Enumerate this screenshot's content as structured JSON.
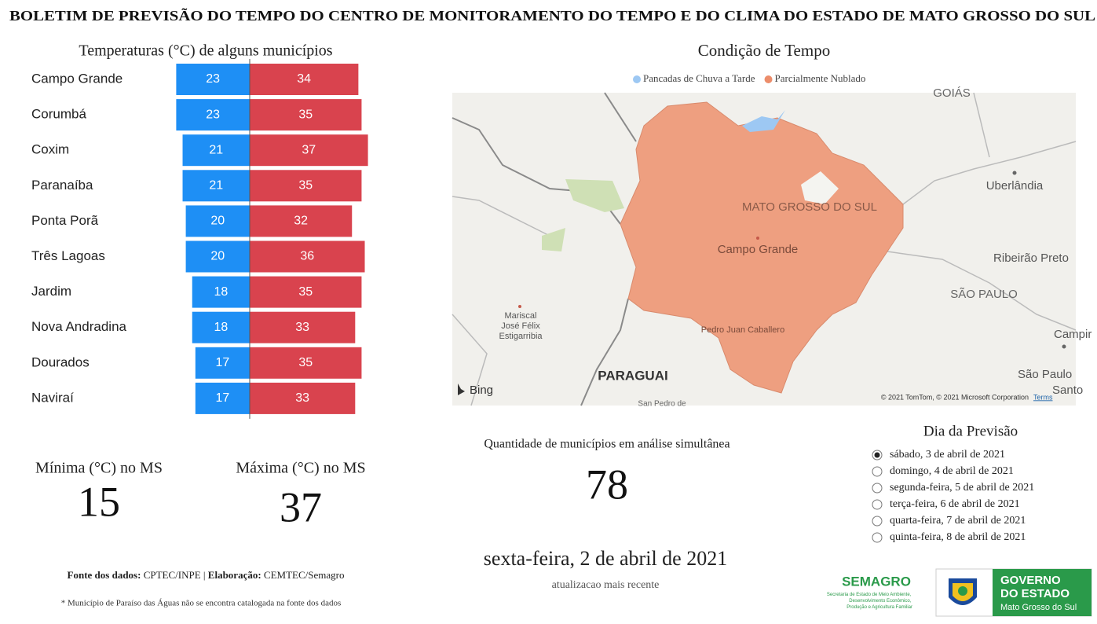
{
  "header": {
    "title": "BOLETIM DE PREVISÃO DO TEMPO DO CENTRO DE MONITORAMENTO DO TEMPO E DO CLIMA DO ESTADO DE MATO GROSSO DO SUL"
  },
  "chart_data": {
    "type": "diverging-bar",
    "title": "Temperaturas (°C) de alguns municípios",
    "categories": [
      "Campo Grande",
      "Corumbá",
      "Coxim",
      "Paranaíba",
      "Ponta Porã",
      "Três Lagoas",
      "Jardim",
      "Nova Andradina",
      "Dourados",
      "Naviraí"
    ],
    "series": [
      {
        "color": "#1e8ff5",
        "values": [
          23,
          23,
          21,
          21,
          20,
          20,
          18,
          18,
          17,
          17
        ]
      },
      {
        "color": "#d9434e",
        "values": [
          34,
          35,
          37,
          35,
          32,
          36,
          35,
          33,
          35,
          33
        ]
      }
    ]
  },
  "cards": {
    "min": {
      "label": "Mínima (°C) no MS",
      "value": 15
    },
    "max": {
      "label": "Máxima (°C) no MS",
      "value": 37
    },
    "count": {
      "label": "Quantidade de municípios em análise simultânea",
      "value": 78
    },
    "updated": {
      "value": "sexta-feira, 2 de abril de 2021",
      "label": "atualizacao mais recente"
    }
  },
  "map": {
    "title": "Condição de Tempo",
    "legend": [
      {
        "name": "Pancadas de Chuva a Tarde",
        "color": "#9dc8f3"
      },
      {
        "name": "Parcialmente Nublado",
        "color": "#ec8d6b"
      }
    ],
    "labels": [
      "GOIÁS",
      "Uberlândia",
      "MATO GROSSO DO SUL",
      "Campo Grande",
      "Ribeirão Preto",
      "SÃO PAULO",
      "Mariscal José Félix Estigarribia",
      "Pedro Juan Caballero",
      "Campir",
      "PARAGUAI",
      "São Paulo",
      "Santo",
      "San Pedro de"
    ],
    "brand": "Bing",
    "copyright": "© 2021 TomTom, © 2021 Microsoft Corporation",
    "terms": "Terms"
  },
  "slicer": {
    "title": "Dia da Previsão",
    "options": [
      "sábado, 3 de abril de 2021",
      "domingo, 4 de abril de 2021",
      "segunda-feira, 5 de abril de 2021",
      "terça-feira, 6 de abril de 2021",
      "quarta-feira, 7 de abril de 2021",
      "quinta-feira, 8 de abril de 2021"
    ],
    "selected": 0
  },
  "footer": {
    "source_label": "Fonte dos dados:",
    "source": "CPTEC/INPE",
    "separator": "|",
    "author_label": "Elaboração:",
    "author": "CEMTEC/Semagro",
    "note": "* Município de Paraíso das Águas não se encontra catalogada na fonte dos dados"
  },
  "logos": {
    "semagro": "SEMAGRO",
    "semagro_lines": [
      "Secretaria de Estado de Meio Ambiente,",
      "Desenvolvimento Econômico,",
      "Produção e Agricultura Familiar"
    ],
    "gov_lines": [
      "GOVERNO",
      "DO ESTADO"
    ],
    "gov_state": "Mato Grosso do Sul"
  }
}
